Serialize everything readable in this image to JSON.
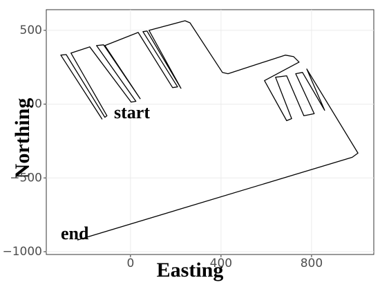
{
  "chart_data": {
    "type": "line",
    "xlabel": "Easting",
    "ylabel": "Northing",
    "annotations": [
      "start",
      "end"
    ],
    "x": [
      -125,
      -308,
      -284,
      -113,
      -104,
      -263,
      -180,
      3,
      24,
      -150,
      -119,
      43,
      -113,
      34,
      186,
      208,
      55,
      73,
      223,
      82,
      241,
      263,
      406,
      431,
      684,
      721,
      745,
      592,
      690,
      712,
      641,
      690,
      766,
      812,
      730,
      760,
      858,
      779,
      1005,
      980,
      -235
    ],
    "series": [
      {
        "name": "track",
        "color": "#000000",
        "values": [
          -103,
          332,
          336,
          -89,
          -79,
          346,
          388,
          14,
          19,
          397,
          402,
          37,
          397,
          486,
          112,
          117,
          491,
          495,
          107,
          500,
          565,
          551,
          215,
          206,
          332,
          322,
          285,
          159,
          -112,
          -98,
          182,
          192,
          -79,
          -65,
          206,
          215,
          -42,
          238,
          -332,
          -360,
          -921
        ]
      }
    ],
    "xlim": [
      -372,
      1075
    ],
    "ylim": [
      -1019,
      640
    ],
    "xticks": [
      0,
      400,
      800
    ],
    "yticks": [
      500,
      0,
      {
        "value": -500,
        "label": "−500"
      },
      {
        "value": -1000,
        "label": "−1000"
      }
    ],
    "grid": true
  }
}
